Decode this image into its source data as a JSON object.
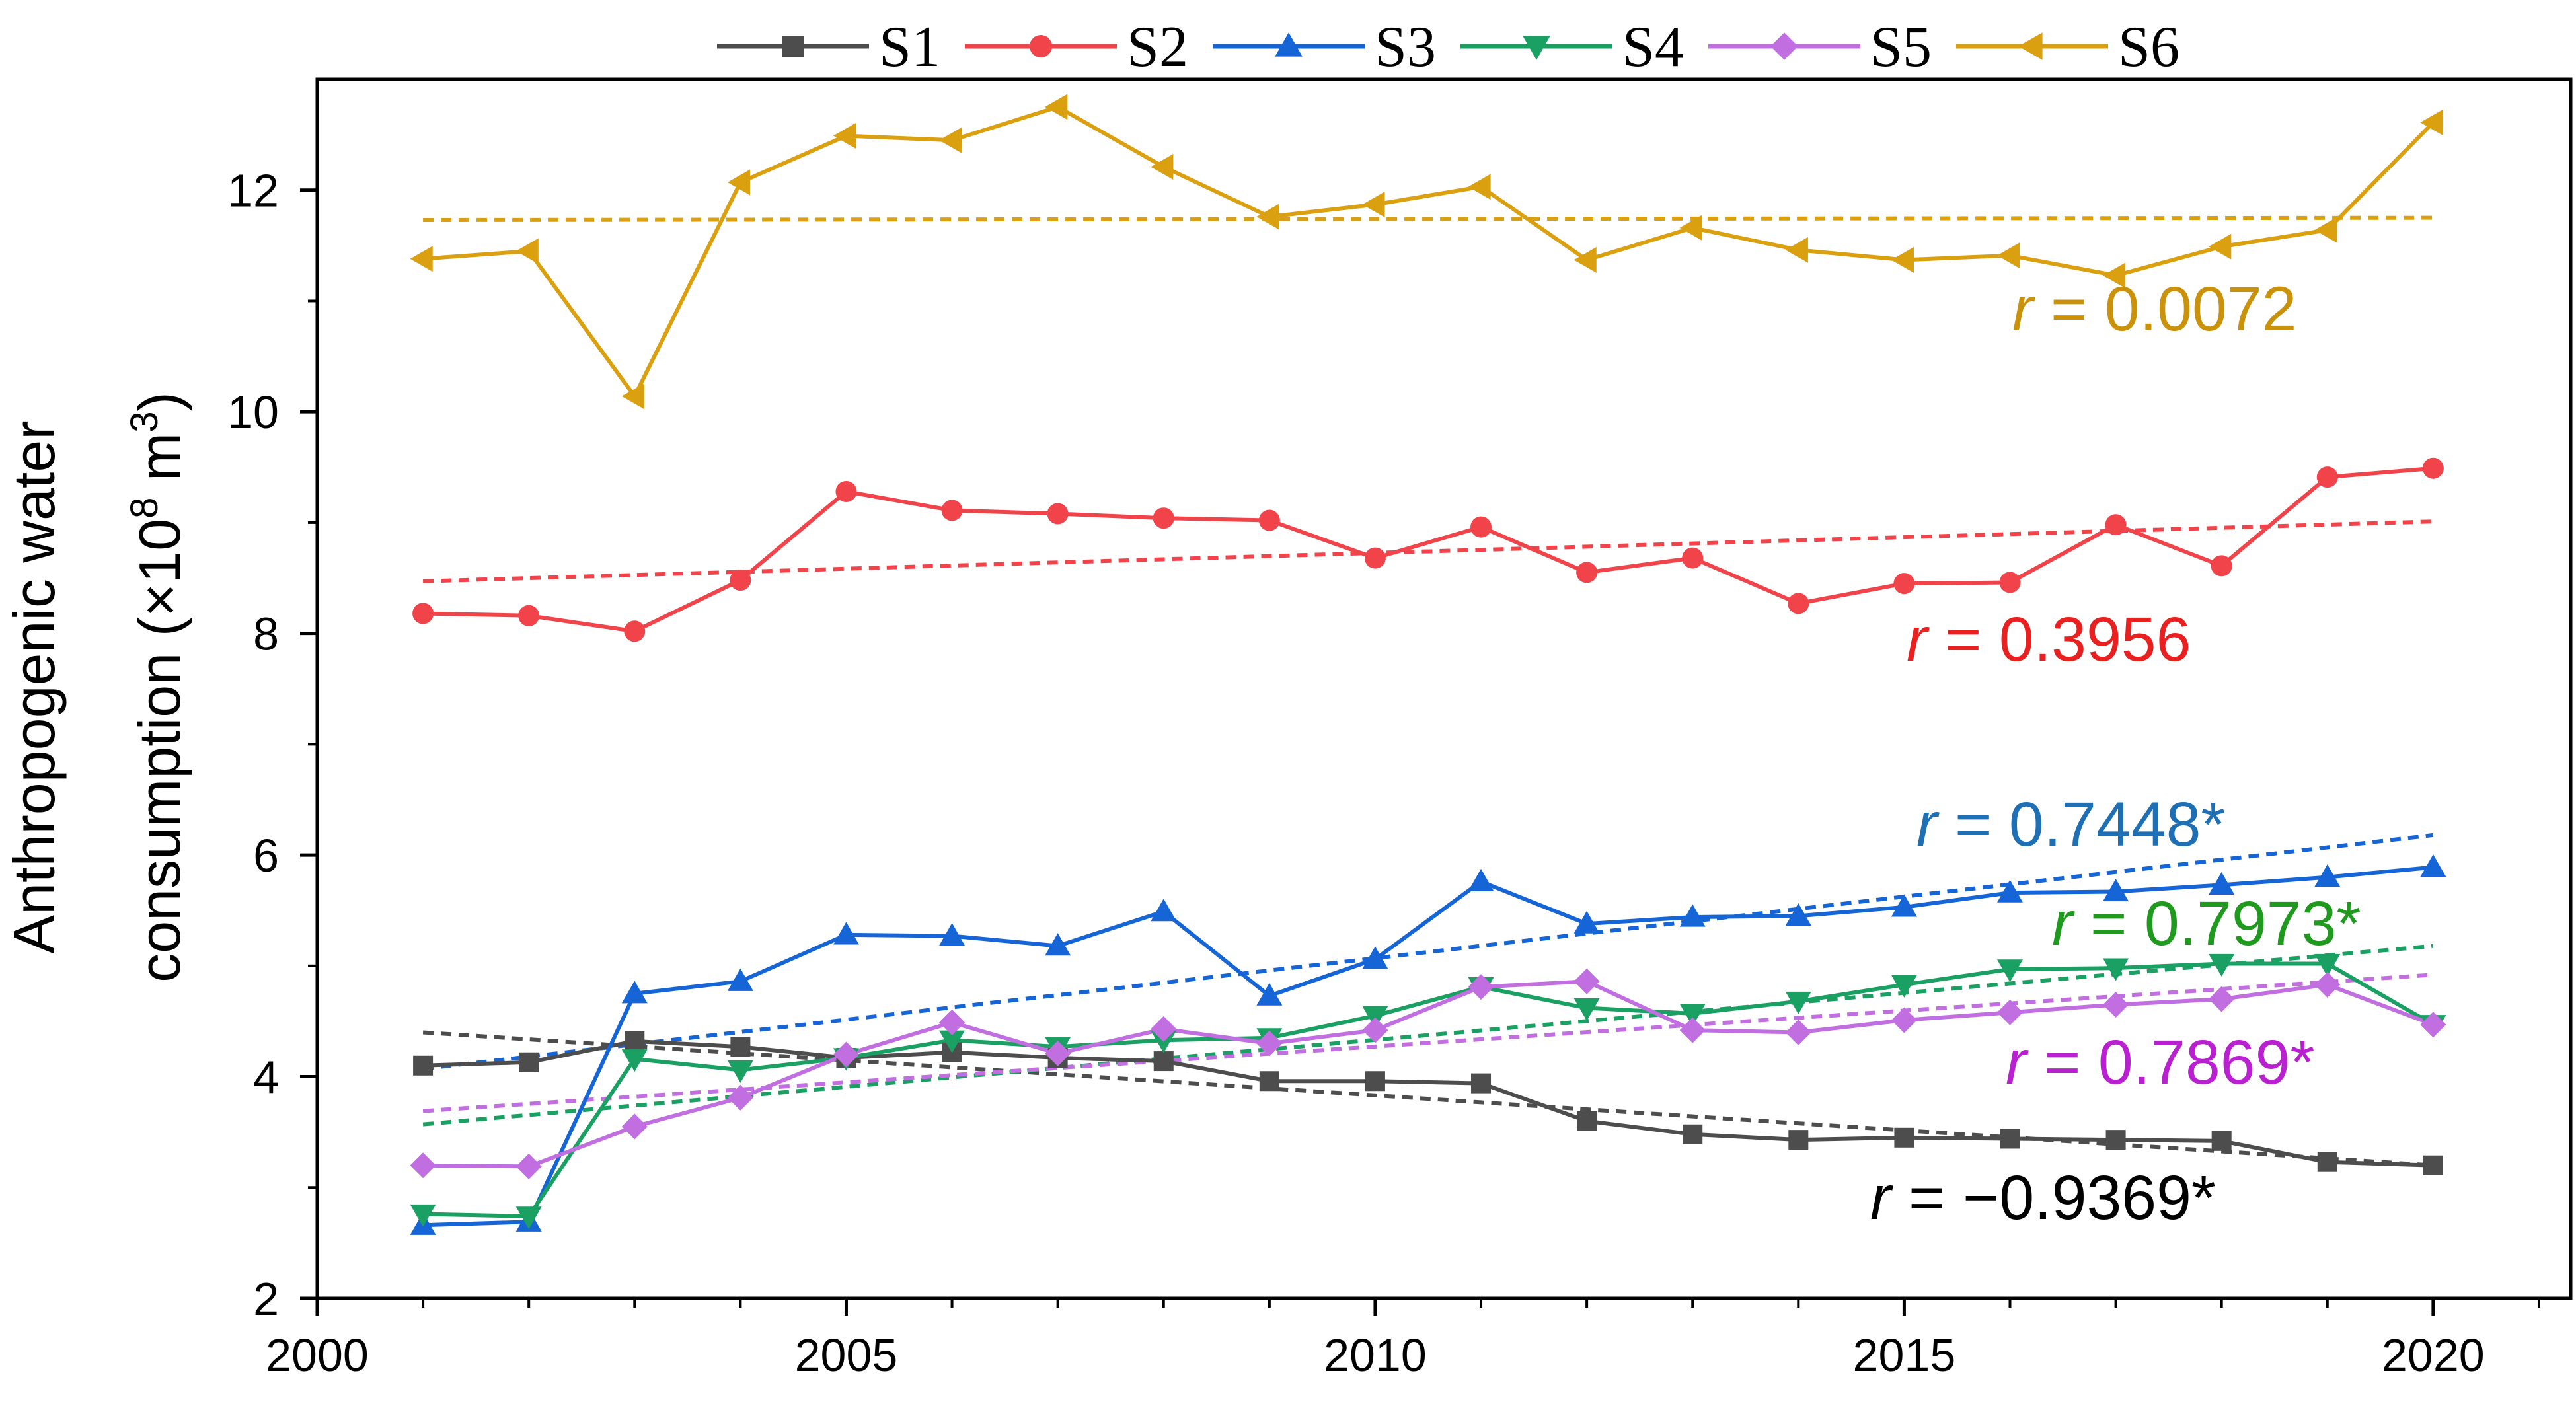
{
  "chart_data": {
    "type": "line",
    "title": "",
    "xlabel": "",
    "ylabel": {
      "line1": "Anthropogenic water",
      "line2_prefix": "consumption (×10",
      "line2_exp": "8",
      "line2_mid": " m",
      "line2_exp2": "3",
      "line2_suffix": ")"
    },
    "xlim": [
      2000,
      2021.3
    ],
    "ylim": [
      2,
      13
    ],
    "x_major_ticks": [
      2000,
      2005,
      2010,
      2015,
      2020
    ],
    "x_tick_labels": [
      "2000",
      "2005",
      "2010",
      "2015",
      "2020"
    ],
    "y_major_ticks": [
      2,
      4,
      6,
      8,
      10,
      12
    ],
    "y_tick_labels": [
      "2",
      "4",
      "6",
      "8",
      "10",
      "12"
    ],
    "legend_position": "top",
    "x": [
      2001,
      2002,
      2003,
      2004,
      2005,
      2006,
      2007,
      2008,
      2009,
      2010,
      2011,
      2012,
      2013,
      2014,
      2015,
      2016,
      2017,
      2018,
      2019,
      2020
    ],
    "series": [
      {
        "name": "S1",
        "color": "#4d4d4d",
        "marker": "square",
        "values": [
          4.1,
          4.13,
          4.32,
          4.27,
          4.17,
          4.22,
          4.17,
          4.14,
          3.96,
          3.96,
          3.94,
          3.6,
          3.48,
          3.43,
          3.45,
          3.44,
          3.43,
          3.42,
          3.23,
          3.2
        ],
        "trend": [
          4.4,
          3.2
        ],
        "r_label": {
          "r": "r",
          "value": " = −0.9369*",
          "color": "#000000"
        }
      },
      {
        "name": "S2",
        "color": "#f0444a",
        "marker": "circle",
        "values": [
          8.18,
          8.16,
          8.02,
          8.48,
          9.28,
          9.11,
          9.08,
          9.04,
          9.02,
          8.68,
          8.96,
          8.55,
          8.68,
          8.27,
          8.45,
          8.46,
          8.98,
          8.61,
          9.41,
          9.49
        ],
        "trend": [
          8.47,
          9.01
        ],
        "r_label": {
          "r": "r",
          "value": " = 0.3956",
          "color": "#e82020"
        }
      },
      {
        "name": "S3",
        "color": "#1565d6",
        "marker": "triangle-up",
        "values": [
          2.66,
          2.69,
          4.75,
          4.86,
          5.28,
          5.27,
          5.18,
          5.49,
          4.73,
          5.06,
          5.76,
          5.38,
          5.44,
          5.45,
          5.53,
          5.66,
          5.67,
          5.73,
          5.8,
          5.89
        ],
        "trend": [
          4.07,
          6.18
        ],
        "r_label": {
          "r": "r",
          "value": " = 0.7448*",
          "color": "#1f6fb5"
        }
      },
      {
        "name": "S4",
        "color": "#19a062",
        "marker": "triangle-down",
        "values": [
          2.76,
          2.74,
          4.16,
          4.06,
          4.17,
          4.33,
          4.27,
          4.33,
          4.35,
          4.55,
          4.81,
          4.62,
          4.57,
          4.68,
          4.83,
          4.97,
          4.98,
          5.02,
          5.02,
          4.47
        ],
        "trend": [
          3.57,
          5.18
        ],
        "r_label": {
          "r": "r",
          "value": " = 0.7973*",
          "color": "#1f9a1f"
        }
      },
      {
        "name": "S5",
        "color": "#c06ee0",
        "marker": "diamond",
        "values": [
          3.2,
          3.19,
          3.55,
          3.81,
          4.2,
          4.49,
          4.21,
          4.43,
          4.3,
          4.42,
          4.81,
          4.86,
          4.42,
          4.4,
          4.51,
          4.58,
          4.65,
          4.7,
          4.83,
          4.47
        ],
        "trend": [
          3.69,
          4.92
        ],
        "r_label": {
          "r": "r",
          "value": " = 0.7869*",
          "color": "#b820d0"
        }
      },
      {
        "name": "S6",
        "color": "#dba010",
        "marker": "triangle-left",
        "values": [
          11.38,
          11.45,
          10.14,
          12.07,
          12.49,
          12.45,
          12.75,
          12.21,
          11.76,
          11.87,
          12.03,
          11.37,
          11.66,
          11.46,
          11.37,
          11.41,
          11.23,
          11.49,
          11.64,
          12.61
        ],
        "trend": [
          11.73,
          11.75
        ],
        "r_label": {
          "r": "r",
          "value": " = 0.0072",
          "color": "#c9920a"
        }
      }
    ]
  }
}
